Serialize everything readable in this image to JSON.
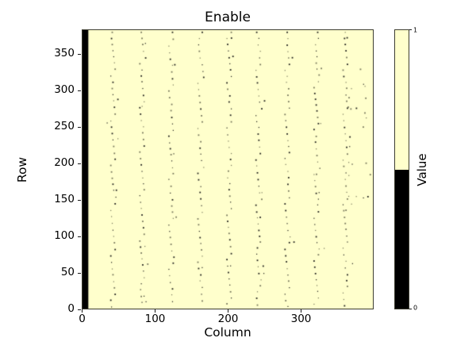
{
  "chart_data": {
    "type": "heatmap",
    "title": "Enable",
    "xlabel": "Column",
    "ylabel": "Row",
    "x_range": [
      0,
      400
    ],
    "y_range": [
      0,
      384
    ],
    "x_ticks": [
      0,
      100,
      200,
      300
    ],
    "y_ticks": [
      0,
      50,
      100,
      150,
      200,
      250,
      300,
      350
    ],
    "grid": false,
    "colors": {
      "on_value_color": "#ffffcc",
      "off_value_color": "#000000",
      "dot_dark": "#20201c",
      "dot_light": "#77775c",
      "spine": "#3d3d30"
    },
    "colorbar": {
      "label": "Value",
      "tick_top": "1",
      "tick_bottom": "0",
      "top_color": "#ffffcc",
      "bottom_color": "#000000",
      "boundary_fraction": 0.5
    },
    "background_value": 1,
    "disabled_pixels": {
      "left_column_band": {
        "col_start": 0,
        "col_end": 8,
        "row_start": 0,
        "row_end": 384
      },
      "dotted_lines": {
        "base_columns": [
          40,
          80,
          120,
          160,
          200,
          240,
          280,
          320,
          360
        ],
        "row_start": 381,
        "row_end": 2,
        "row_step": 8.73,
        "col_drift_period": 7,
        "col_drift_offset": -1
      },
      "scatter_cluster": {
        "col_min": 364,
        "col_max": 398,
        "row_min": 140,
        "row_max": 310,
        "count": 22
      },
      "extra_dots": [
        [
          34,
          256
        ],
        [
          372,
          62
        ],
        [
          383,
          330
        ]
      ]
    }
  }
}
